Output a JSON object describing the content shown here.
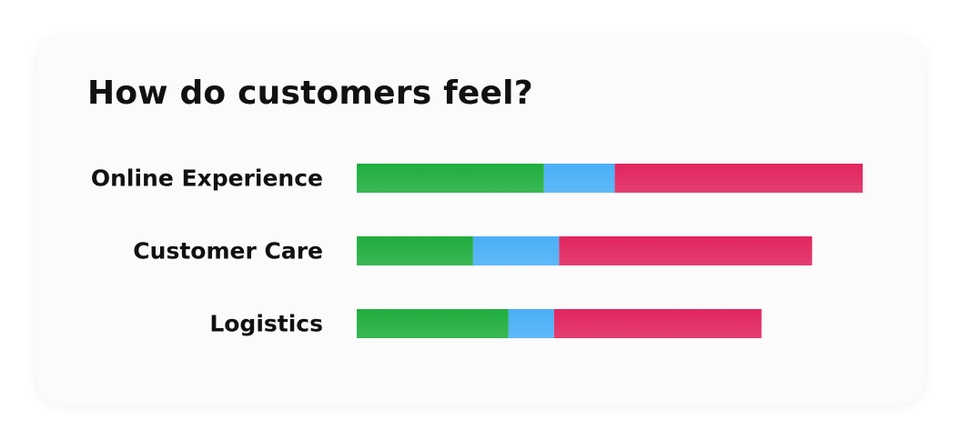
{
  "title": "How do customers feel?",
  "chart_data": {
    "type": "bar",
    "orientation": "horizontal",
    "stacked": true,
    "categories": [
      "Online Experience",
      "Customer Care",
      "Logistics"
    ],
    "series": [
      {
        "color": "#1fae3e",
        "values": [
          37,
          23,
          30
        ]
      },
      {
        "color": "#4aaff7",
        "values": [
          14,
          17,
          9
        ]
      },
      {
        "color": "#e1255f",
        "values": [
          49,
          50,
          41
        ]
      }
    ],
    "xlim": [
      0,
      100
    ],
    "grid": false,
    "legend": "none"
  }
}
